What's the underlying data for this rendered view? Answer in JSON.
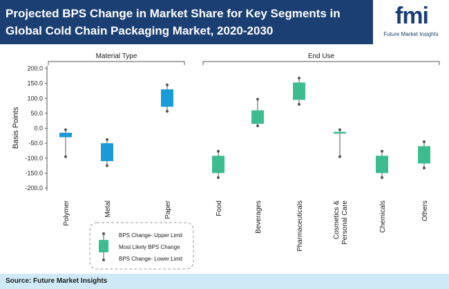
{
  "header": {
    "title": "Projected BPS Change in Market Share for Key Segments in Global Cold Chain Packaging Market, 2020-2030",
    "logo_letters": "fmi",
    "logo_text": "Future Market Insights"
  },
  "footer": {
    "source": "Source: Future Market Insights"
  },
  "colors": {
    "header_bg": "#1c3f73",
    "material": "#1a9ad6",
    "end_use": "#3dbd8f",
    "footer_bg": "#cfe9f7"
  },
  "chart_data": {
    "type": "box",
    "ylabel": "Basis Points",
    "ylim": [
      -200,
      200
    ],
    "yticks": [
      200,
      150,
      100,
      50,
      0,
      -50,
      -100,
      -150,
      -200
    ],
    "ytick_labels": [
      "200.0",
      "150.0",
      "100.0",
      "50.0",
      "0.0",
      "-50.0",
      "-100.0",
      "-150.0",
      "-200.0"
    ],
    "groups": [
      {
        "label": "Material Type",
        "categories": [
          "Polymer",
          "Metal",
          "Paper"
        ]
      },
      {
        "label": "End Use",
        "categories": [
          "Food",
          "Beverages",
          "Pharmaceuticals",
          "Cosmetics & Personal Care",
          "Chemicals",
          "Others"
        ]
      }
    ],
    "series": [
      {
        "category": "Polymer",
        "group": "Material Type",
        "upper": -5,
        "box_high": -15,
        "box_low": -30,
        "lower": -95
      },
      {
        "category": "Metal",
        "group": "Material Type",
        "upper": -38,
        "box_high": -50,
        "box_low": -110,
        "lower": -125
      },
      {
        "category": "Paper",
        "group": "Material Type",
        "upper": 145,
        "box_high": 130,
        "box_low": 72,
        "lower": 57
      },
      {
        "category": "Food",
        "group": "End Use",
        "upper": -77,
        "box_high": -92,
        "box_low": -150,
        "lower": -165
      },
      {
        "category": "Beverages",
        "group": "End Use",
        "upper": 97,
        "box_high": 60,
        "box_low": 15,
        "lower": 8
      },
      {
        "category": "Pharmaceuticals",
        "group": "End Use",
        "upper": 168,
        "box_high": 153,
        "box_low": 95,
        "lower": 80
      },
      {
        "category": "Cosmetics & Personal Care",
        "group": "End Use",
        "upper": -5,
        "box_high": -12,
        "box_low": -18,
        "lower": -95
      },
      {
        "category": "Chemicals",
        "group": "End Use",
        "upper": -77,
        "box_high": -92,
        "box_low": -150,
        "lower": -165
      },
      {
        "category": "Others",
        "group": "End Use",
        "upper": -45,
        "box_high": -60,
        "box_low": -118,
        "lower": -133
      }
    ],
    "x_labels": [
      [
        "Polymer"
      ],
      [
        "Metal"
      ],
      [
        "Paper"
      ],
      [
        "Food"
      ],
      [
        "Beverages"
      ],
      [
        "Pharmaceuticals"
      ],
      [
        "Cosmetics &",
        "Personal Care"
      ],
      [
        "Chemicals"
      ],
      [
        "Others"
      ]
    ],
    "legend": {
      "upper": "BPS Change- Upper Limit",
      "likely": "Most Likely BPS Change",
      "lower": "BPS Change- Lower Limit"
    }
  }
}
